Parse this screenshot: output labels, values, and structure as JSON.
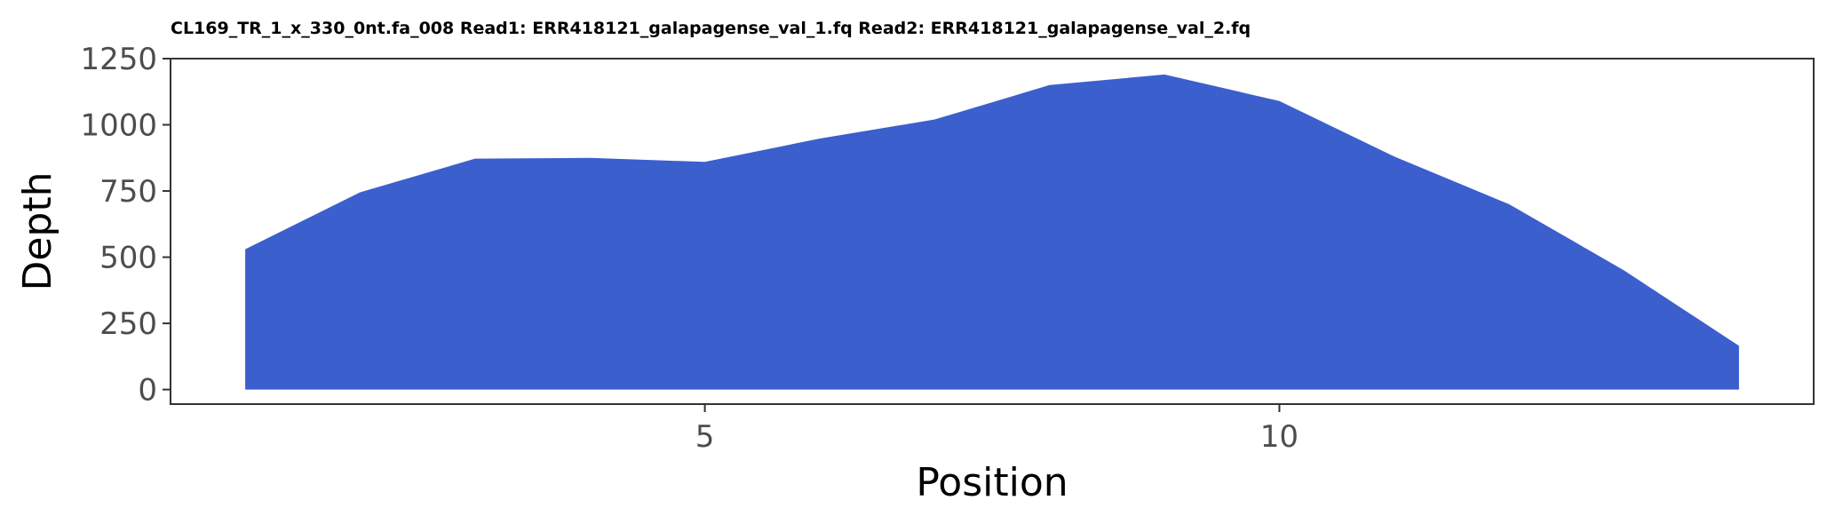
{
  "chart_data": {
    "type": "area",
    "title": "CL169_TR_1_x_330_0nt.fa_008 Read1: ERR418121_galapagense_val_1.fq Read2: ERR418121_galapagense_val_2.fq",
    "xlabel": "Position",
    "ylabel": "Depth",
    "x": [
      1,
      2,
      3,
      4,
      5,
      6,
      7,
      8,
      9,
      10,
      11,
      12,
      13,
      14
    ],
    "values": [
      530,
      745,
      872,
      875,
      860,
      948,
      1020,
      1150,
      1190,
      1090,
      880,
      700,
      450,
      165
    ],
    "xlim": [
      0.35,
      14.65
    ],
    "ylim": [
      -55,
      1250
    ],
    "xticks": [
      5,
      10
    ],
    "yticks": [
      0,
      250,
      500,
      750,
      1000,
      1250
    ],
    "fill_color": "#3b5fcd",
    "grid": false,
    "legend": "none"
  }
}
